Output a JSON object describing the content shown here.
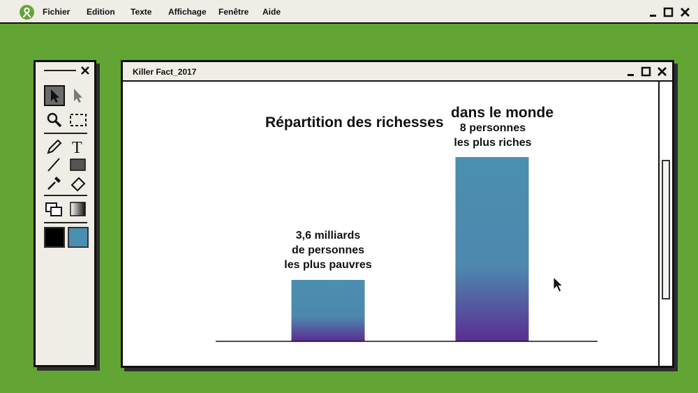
{
  "menubar": {
    "items": [
      {
        "label": "Fichier"
      },
      {
        "label": "Edition"
      },
      {
        "label": "Texte"
      },
      {
        "label": "Affichage"
      },
      {
        "label": "Fenêtre"
      },
      {
        "label": "Aide"
      }
    ]
  },
  "document": {
    "title": "Killer Fact_2017"
  },
  "palette": {
    "tools": [
      "select-arrow-icon",
      "direct-select-icon",
      "zoom-icon",
      "marquee-icon",
      "pencil-icon",
      "text-icon",
      "line-icon",
      "rectangle-icon",
      "eyedropper-icon",
      "eraser-icon",
      "layers-icon",
      "gradient-icon"
    ],
    "foreground_color": "#000000",
    "background_color": "#4a8fb0"
  },
  "colors": {
    "desktop": "#63a535",
    "bar_top": "#4a8fb0",
    "bar_bottom": "#5b2d91"
  },
  "chart_data": {
    "type": "bar",
    "title_part1": "Répartition des richesses",
    "title_part2": "dans le monde",
    "bars": [
      {
        "label_lines": [
          "3,6 milliards",
          "de personnes",
          "les plus pauvres"
        ],
        "value": 1
      },
      {
        "label_lines": [
          "8 personnes",
          "les plus riches"
        ],
        "value": 3
      }
    ]
  }
}
